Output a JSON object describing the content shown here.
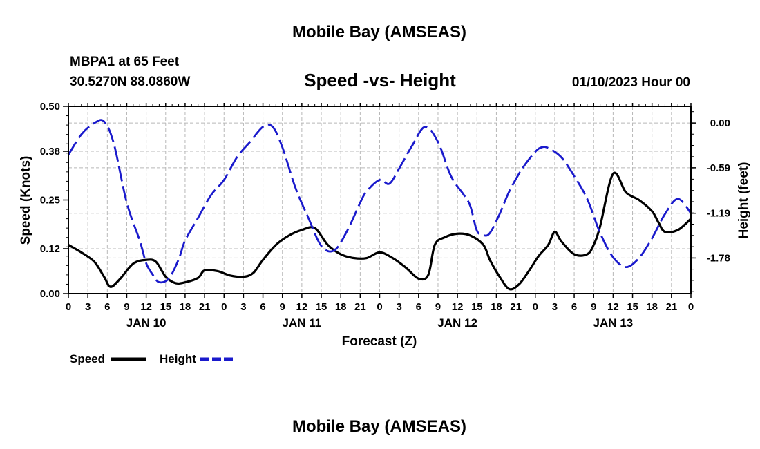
{
  "page": {
    "title": "Mobile Bay (AMSEAS)",
    "station": "MBPA1 at 65 Feet",
    "coords": "30.5270N  88.0860W",
    "date": "01/10/2023 Hour 00",
    "bottom_title": "Mobile Bay (AMSEAS)"
  },
  "chart_data": {
    "type": "line",
    "title": "Speed -vs- Height",
    "xlabel": "Forecast (Z)",
    "ylabel_left": "Speed (Knots)",
    "ylabel_right": "Height (feet)",
    "grid": true,
    "x_range_hours": [
      0,
      96
    ],
    "x_tick_step_hours": 3,
    "x_tick_labels": [
      "0",
      "3",
      "6",
      "9",
      "12",
      "15",
      "18",
      "21",
      "0",
      "3",
      "6",
      "9",
      "12",
      "15",
      "18",
      "21",
      "0",
      "3",
      "6",
      "9",
      "12",
      "15",
      "18",
      "21",
      "0",
      "3",
      "6",
      "9",
      "12",
      "15",
      "18",
      "21",
      "0"
    ],
    "day_labels": [
      {
        "hour": 12,
        "label": "JAN 10"
      },
      {
        "hour": 36,
        "label": "JAN 11"
      },
      {
        "hour": 60,
        "label": "JAN 12"
      },
      {
        "hour": 84,
        "label": "JAN 13"
      }
    ],
    "y_left": {
      "range": [
        0,
        0.5
      ],
      "ticks": [
        0,
        0.12,
        0.25,
        0.38,
        0.5
      ],
      "tick_labels": [
        "0.00",
        "0.12",
        "0.25",
        "0.38",
        "0.50"
      ]
    },
    "y_right": {
      "range": [
        -2.25,
        0.22
      ],
      "ticks": [
        0,
        -0.59,
        -1.19,
        -1.78
      ],
      "tick_labels": [
        "0.00",
        "-0.59",
        "-1.19",
        "-1.78"
      ]
    },
    "legend": [
      {
        "name": "Speed",
        "color": "#000000",
        "dash": "solid"
      },
      {
        "name": "Height",
        "color": "#1a1acc",
        "dash": "dashed"
      }
    ],
    "series": [
      {
        "name": "Speed",
        "axis": "left",
        "color": "#000000",
        "x": [
          0,
          2,
          4,
          5.5,
          6.5,
          8,
          10,
          12,
          13.5,
          15,
          16.5,
          18,
          20,
          21,
          23,
          25,
          27,
          28.5,
          30,
          32,
          34,
          36,
          38,
          40,
          42,
          44,
          46,
          48,
          50,
          52,
          54,
          55.5,
          56.5,
          58,
          60,
          62,
          64,
          65,
          66.5,
          68,
          69.5,
          71,
          72.5,
          74,
          75,
          76,
          78,
          80,
          81,
          82,
          84,
          86,
          88,
          90,
          91,
          92,
          94,
          96
        ],
        "y": [
          0.13,
          0.11,
          0.085,
          0.045,
          0.018,
          0.04,
          0.08,
          0.09,
          0.085,
          0.045,
          0.028,
          0.03,
          0.042,
          0.062,
          0.06,
          0.048,
          0.045,
          0.055,
          0.09,
          0.13,
          0.155,
          0.17,
          0.175,
          0.13,
          0.105,
          0.095,
          0.095,
          0.11,
          0.095,
          0.07,
          0.04,
          0.05,
          0.13,
          0.15,
          0.16,
          0.155,
          0.13,
          0.09,
          0.045,
          0.012,
          0.025,
          0.06,
          0.1,
          0.13,
          0.165,
          0.14,
          0.105,
          0.105,
          0.13,
          0.18,
          0.32,
          0.27,
          0.25,
          0.22,
          0.19,
          0.165,
          0.17,
          0.2
        ]
      },
      {
        "name": "Height",
        "axis": "right",
        "color": "#1a1acc",
        "x": [
          0,
          2,
          4,
          5.5,
          7,
          9,
          11,
          12,
          13,
          14,
          15.5,
          17,
          18,
          20,
          22,
          24,
          26,
          28,
          30,
          31.5,
          33,
          35,
          37,
          39,
          41,
          43,
          45,
          46,
          48,
          49.5,
          51,
          53,
          55,
          57,
          59,
          61,
          62,
          63,
          64,
          65,
          66.5,
          68,
          70,
          72,
          73,
          74,
          76,
          78,
          80,
          82,
          84,
          86,
          88,
          90,
          92,
          94,
          96
        ],
        "y": [
          -0.42,
          -0.15,
          0.0,
          0.02,
          -0.27,
          -1.05,
          -1.55,
          -1.85,
          -2.0,
          -2.1,
          -2.05,
          -1.8,
          -1.55,
          -1.25,
          -0.95,
          -0.75,
          -0.45,
          -0.25,
          -0.05,
          -0.05,
          -0.32,
          -0.85,
          -1.25,
          -1.62,
          -1.68,
          -1.42,
          -1.05,
          -0.9,
          -0.75,
          -0.8,
          -0.6,
          -0.3,
          -0.05,
          -0.25,
          -0.7,
          -0.95,
          -1.1,
          -1.42,
          -1.48,
          -1.45,
          -1.2,
          -0.9,
          -0.6,
          -0.38,
          -0.32,
          -0.33,
          -0.45,
          -0.7,
          -1.0,
          -1.45,
          -1.77,
          -1.9,
          -1.78,
          -1.52,
          -1.2,
          -1.0,
          -1.19
        ]
      }
    ]
  }
}
